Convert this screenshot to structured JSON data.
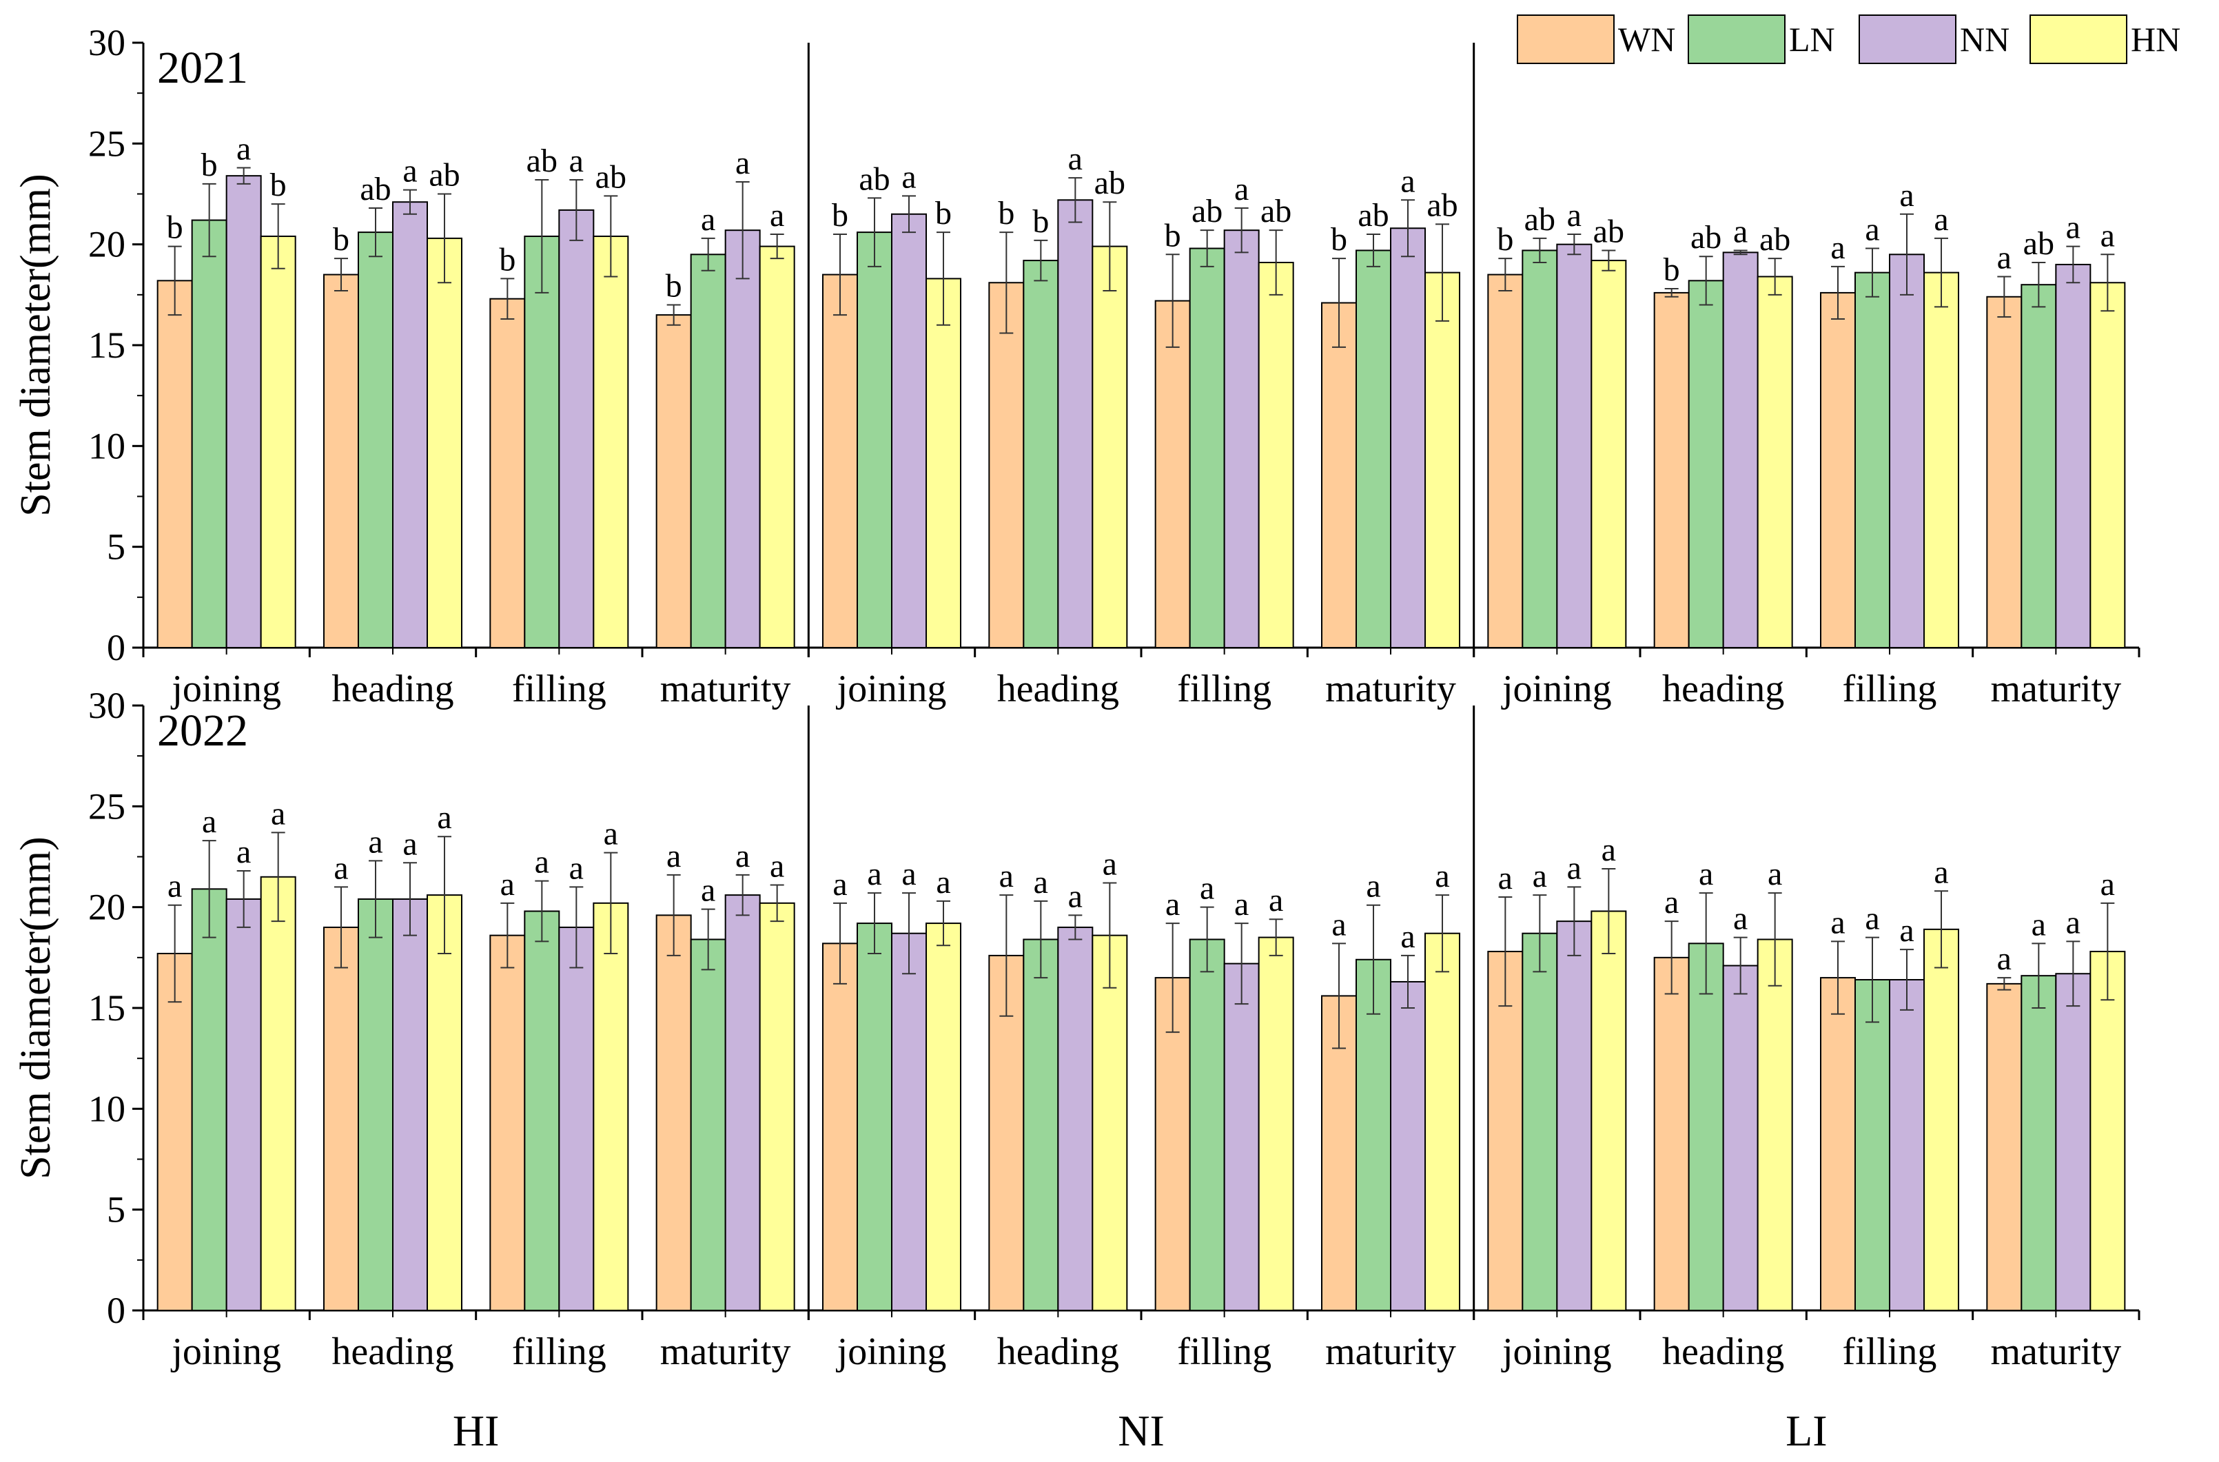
{
  "chart_data": {
    "type": "bar",
    "ylabel": "Stem diameter(mm)",
    "ylim": [
      0,
      30
    ],
    "yticks": [
      0,
      5,
      10,
      15,
      20,
      25,
      30
    ],
    "categories": [
      "joining",
      "heading",
      "filling",
      "maturity"
    ],
    "groups": [
      "HI",
      "NI",
      "LI"
    ],
    "legend": {
      "position": "top-right",
      "entries": [
        {
          "name": "WN",
          "color": "#FFCC99"
        },
        {
          "name": "LN",
          "color": "#99D699"
        },
        {
          "name": "NN",
          "color": "#C8B4DC"
        },
        {
          "name": "HN",
          "color": "#FFFF99"
        }
      ]
    },
    "panels": [
      {
        "year": "2021",
        "groups": [
          {
            "name": "HI",
            "values": [
              [
                18.2,
                21.2,
                23.4,
                20.4
              ],
              [
                18.5,
                20.6,
                22.1,
                20.3
              ],
              [
                17.3,
                20.4,
                21.7,
                20.4
              ],
              [
                16.5,
                19.5,
                20.7,
                19.9
              ]
            ],
            "errors": [
              [
                1.7,
                1.8,
                0.4,
                1.6
              ],
              [
                0.8,
                1.2,
                0.6,
                2.2
              ],
              [
                1.0,
                2.8,
                1.5,
                2.0
              ],
              [
                0.5,
                0.8,
                2.4,
                0.6
              ]
            ],
            "labels": [
              [
                "b",
                "b",
                "a",
                "b"
              ],
              [
                "b",
                "ab",
                "a",
                "ab"
              ],
              [
                "b",
                "ab",
                "a",
                "ab"
              ],
              [
                "b",
                "a",
                "a",
                "a"
              ]
            ]
          },
          {
            "name": "NI",
            "values": [
              [
                18.5,
                20.6,
                21.5,
                18.3
              ],
              [
                18.1,
                19.2,
                22.2,
                19.9
              ],
              [
                17.2,
                19.8,
                20.7,
                19.1
              ],
              [
                17.1,
                19.7,
                20.8,
                18.6
              ]
            ],
            "errors": [
              [
                2.0,
                1.7,
                0.9,
                2.3
              ],
              [
                2.5,
                1.0,
                1.1,
                2.2
              ],
              [
                2.3,
                0.9,
                1.1,
                1.6
              ],
              [
                2.2,
                0.8,
                1.4,
                2.4
              ]
            ],
            "labels": [
              [
                "b",
                "ab",
                "a",
                "b"
              ],
              [
                "b",
                "b",
                "a",
                "ab"
              ],
              [
                "b",
                "ab",
                "a",
                "ab"
              ],
              [
                "b",
                "ab",
                "a",
                "ab"
              ]
            ]
          },
          {
            "name": "LI",
            "values": [
              [
                18.5,
                19.7,
                20.0,
                19.2
              ],
              [
                17.6,
                18.2,
                19.6,
                18.4
              ],
              [
                17.6,
                18.6,
                19.5,
                18.6
              ],
              [
                17.4,
                18.0,
                19.0,
                18.1
              ]
            ],
            "errors": [
              [
                0.8,
                0.6,
                0.5,
                0.5
              ],
              [
                0.2,
                1.2,
                0.1,
                0.9
              ],
              [
                1.3,
                1.2,
                2.0,
                1.7
              ],
              [
                1.0,
                1.1,
                0.9,
                1.4
              ]
            ],
            "labels": [
              [
                "b",
                "ab",
                "a",
                "ab"
              ],
              [
                "b",
                "ab",
                "a",
                "ab"
              ],
              [
                "a",
                "a",
                "a",
                "a"
              ],
              [
                "a",
                "ab",
                "a",
                "a"
              ]
            ]
          }
        ]
      },
      {
        "year": "2022",
        "groups": [
          {
            "name": "HI",
            "values": [
              [
                17.7,
                20.9,
                20.4,
                21.5
              ],
              [
                19.0,
                20.4,
                20.4,
                20.6
              ],
              [
                18.6,
                19.8,
                19.0,
                20.2
              ],
              [
                19.6,
                18.4,
                20.6,
                20.2
              ]
            ],
            "errors": [
              [
                2.4,
                2.4,
                1.4,
                2.2
              ],
              [
                2.0,
                1.9,
                1.8,
                2.9
              ],
              [
                1.6,
                1.5,
                2.0,
                2.5
              ],
              [
                2.0,
                1.5,
                1.0,
                0.9
              ]
            ],
            "labels": [
              [
                "a",
                "a",
                "a",
                "a"
              ],
              [
                "a",
                "a",
                "a",
                "a"
              ],
              [
                "a",
                "a",
                "a",
                "a"
              ],
              [
                "a",
                "a",
                "a",
                "a"
              ]
            ]
          },
          {
            "name": "NI",
            "values": [
              [
                18.2,
                19.2,
                18.7,
                19.2
              ],
              [
                17.6,
                18.4,
                19.0,
                18.6
              ],
              [
                16.5,
                18.4,
                17.2,
                18.5
              ],
              [
                15.6,
                17.4,
                16.3,
                18.7
              ]
            ],
            "errors": [
              [
                2.0,
                1.5,
                2.0,
                1.1
              ],
              [
                3.0,
                1.9,
                0.6,
                2.6
              ],
              [
                2.7,
                1.6,
                2.0,
                0.9
              ],
              [
                2.6,
                2.7,
                1.3,
                1.9
              ]
            ],
            "labels": [
              [
                "a",
                "a",
                "a",
                "a"
              ],
              [
                "a",
                "a",
                "a",
                "a"
              ],
              [
                "a",
                "a",
                "a",
                "a"
              ],
              [
                "a",
                "a",
                "a",
                "a"
              ]
            ]
          },
          {
            "name": "LI",
            "values": [
              [
                17.8,
                18.7,
                19.3,
                19.8
              ],
              [
                17.5,
                18.2,
                17.1,
                18.4
              ],
              [
                16.5,
                16.4,
                16.4,
                18.9
              ],
              [
                16.2,
                16.6,
                16.7,
                17.8
              ]
            ],
            "errors": [
              [
                2.7,
                1.9,
                1.7,
                2.1
              ],
              [
                1.8,
                2.5,
                1.4,
                2.3
              ],
              [
                1.8,
                2.1,
                1.5,
                1.9
              ],
              [
                0.3,
                1.6,
                1.6,
                2.4
              ]
            ],
            "labels": [
              [
                "a",
                "a",
                "a",
                "a"
              ],
              [
                "a",
                "a",
                "a",
                "a"
              ],
              [
                "a",
                "a",
                "a",
                "a"
              ],
              [
                "a",
                "a",
                "a",
                "a"
              ]
            ]
          }
        ]
      }
    ]
  }
}
